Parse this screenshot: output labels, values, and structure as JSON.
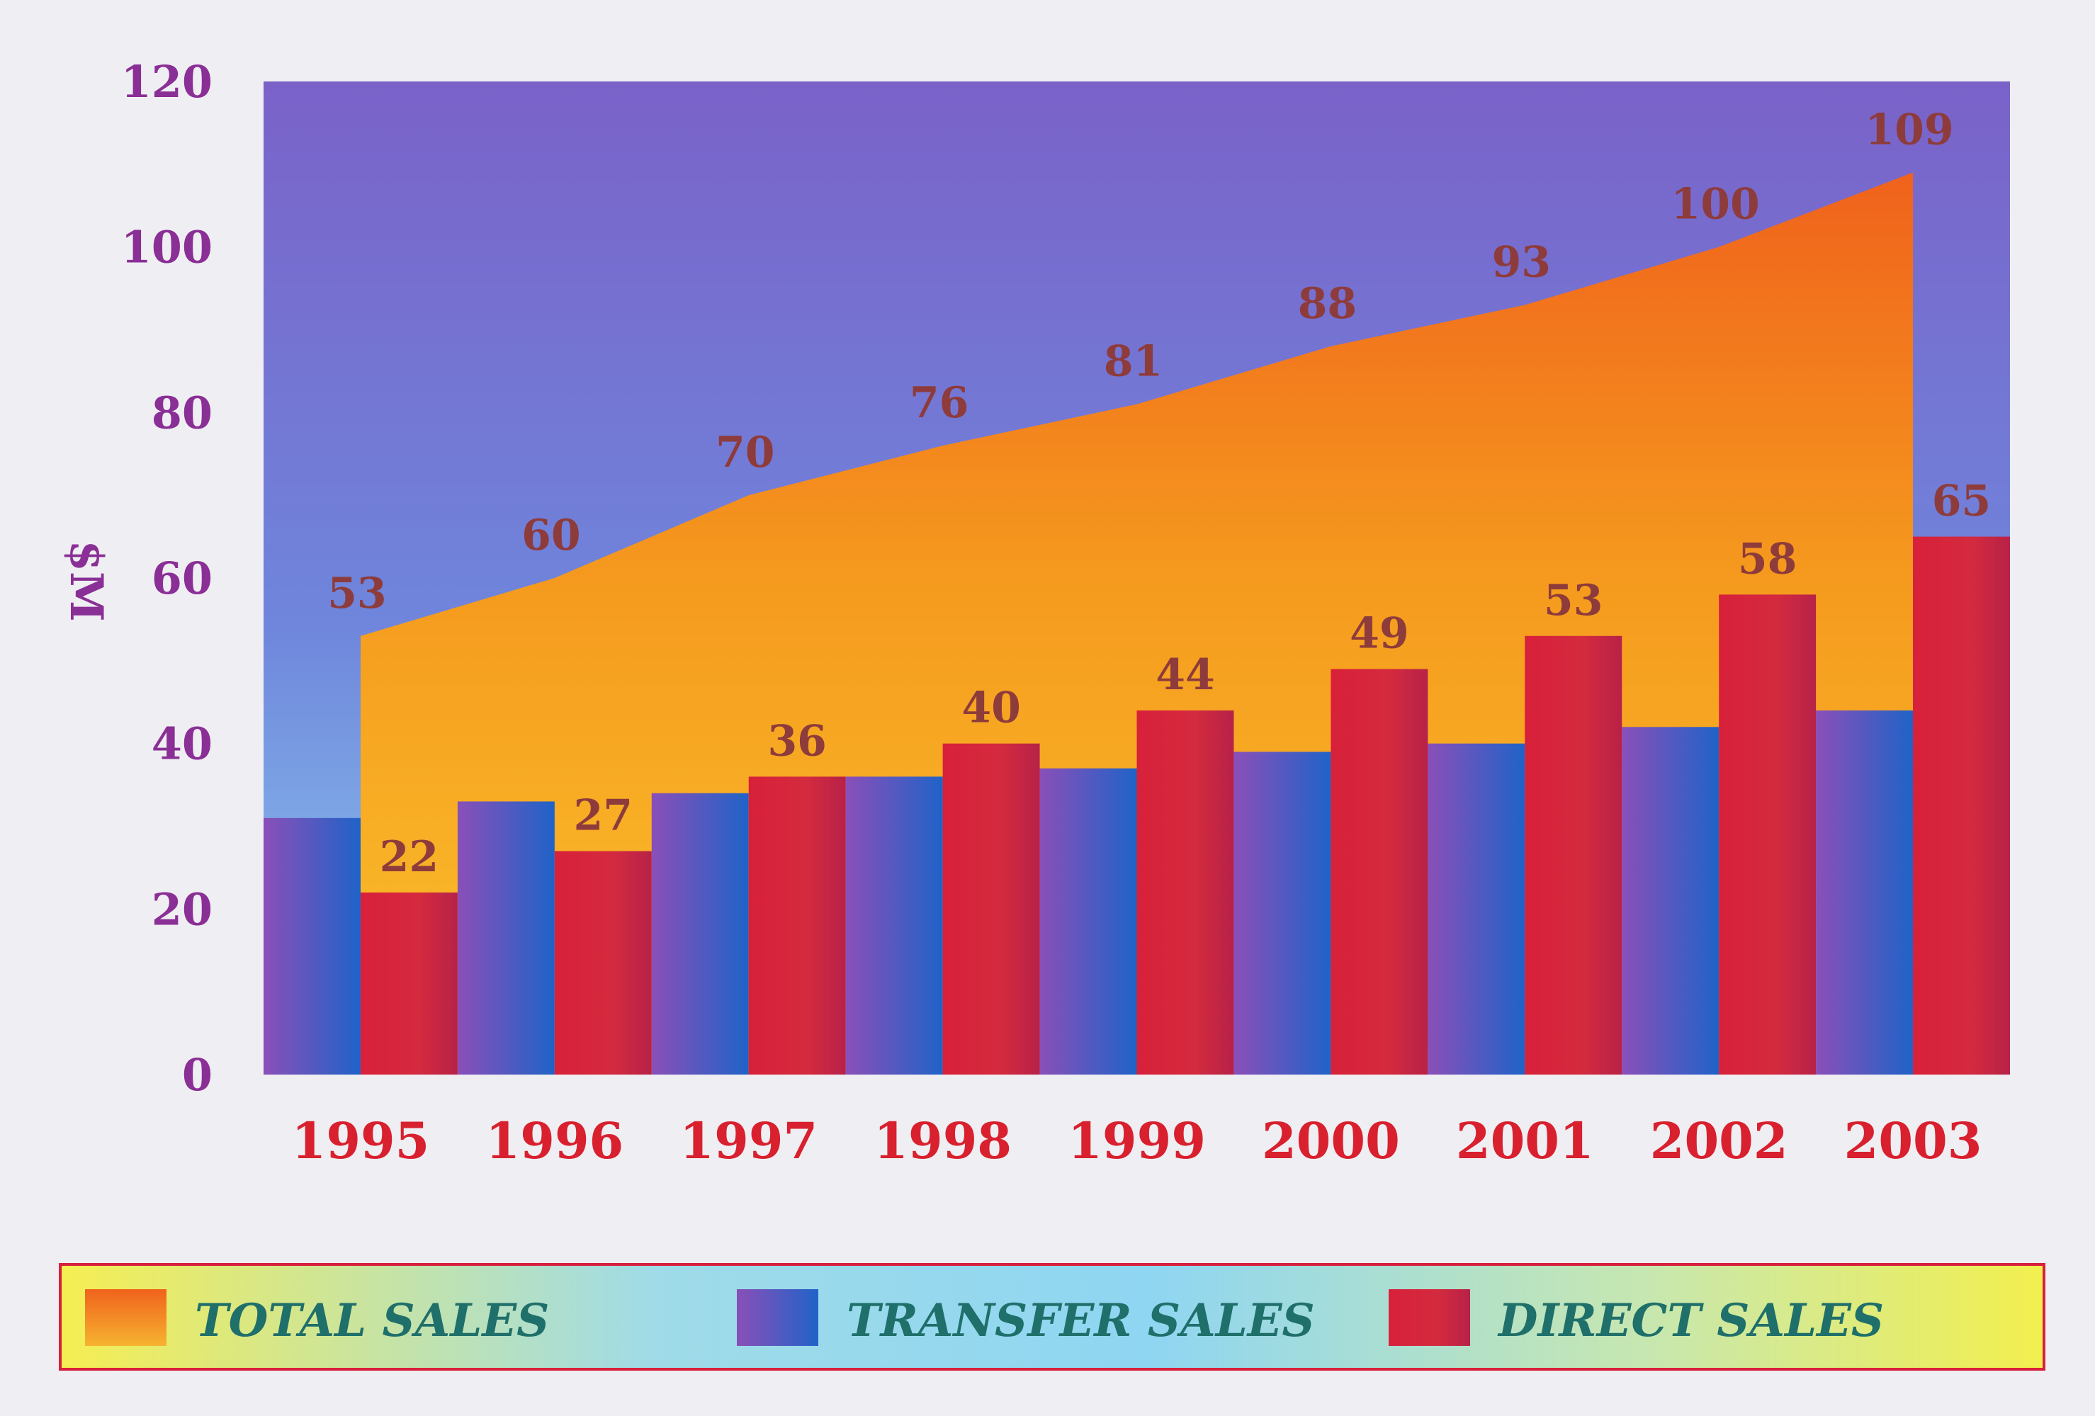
{
  "chart_data": {
    "type": "bar",
    "categories": [
      "1995",
      "1996",
      "1997",
      "1998",
      "1999",
      "2000",
      "2001",
      "2002",
      "2003"
    ],
    "series": [
      {
        "name": "TOTAL SALES",
        "kind": "area",
        "values": [
          53,
          60,
          70,
          76,
          81,
          88,
          93,
          100,
          109
        ],
        "color": "#f39a1e"
      },
      {
        "name": "TRANSFER SALES",
        "kind": "bar",
        "values": [
          31,
          33,
          34,
          36,
          37,
          39,
          40,
          42,
          44
        ],
        "color": "#5a4fc0"
      },
      {
        "name": "DIRECT SALES",
        "kind": "bar",
        "values": [
          22,
          27,
          36,
          40,
          44,
          49,
          53,
          58,
          65
        ],
        "color": "#d81f3c"
      }
    ],
    "ylabel": "$M",
    "ylim": [
      0,
      120
    ],
    "yticks": [
      0,
      20,
      40,
      60,
      80,
      100,
      120
    ],
    "legend_position": "bottom",
    "background_color": "#6f74d6"
  }
}
